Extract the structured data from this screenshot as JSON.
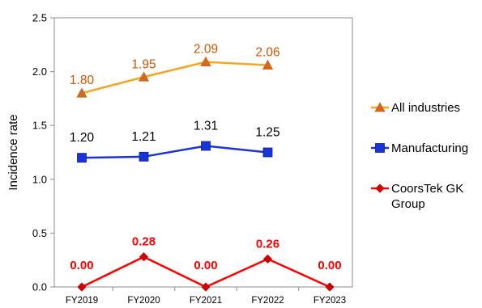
{
  "chart_data": {
    "type": "line",
    "title": "",
    "xlabel": "",
    "ylabel": "Incidence rate",
    "ylim": [
      0,
      2.5
    ],
    "yticks": [
      "0.0",
      "0.5",
      "1.0",
      "1.5",
      "2.0",
      "2.5"
    ],
    "categories": [
      "FY2019",
      "FY2020",
      "FY2021",
      "FY2022",
      "FY2023"
    ],
    "grid": false,
    "legend_position": "right",
    "series": [
      {
        "name": "All industries",
        "color": "#F5A623",
        "marker_color": "#D2691E",
        "marker": "triangle",
        "label_color": "#D35400",
        "label_bold": false,
        "values": [
          1.8,
          1.95,
          2.09,
          2.06,
          null
        ],
        "labels": [
          "1.80",
          "1.95",
          "2.09",
          "2.06",
          ""
        ]
      },
      {
        "name": "Manufacturing",
        "color": "#1A35D6",
        "marker_color": "#1A35D6",
        "marker": "square",
        "label_color": "#000000",
        "label_bold": false,
        "values": [
          1.2,
          1.21,
          1.31,
          1.25,
          null
        ],
        "labels": [
          "1.20",
          "1.21",
          "1.31",
          "1.25",
          ""
        ]
      },
      {
        "name": "CoorsTek GK Group",
        "color": "#FF0000",
        "marker_color": "#CC0000",
        "marker": "diamond",
        "label_color": "#FF0000",
        "label_bold": true,
        "values": [
          0.0,
          0.28,
          0.0,
          0.26,
          0.0
        ],
        "labels": [
          "0.00",
          "0.28",
          "0.00",
          "0.26",
          "0.00"
        ]
      }
    ],
    "legend_lines": [
      [
        "All industries"
      ],
      [
        "Manufacturing"
      ],
      [
        "CoorsTek GK",
        "Group"
      ]
    ]
  }
}
